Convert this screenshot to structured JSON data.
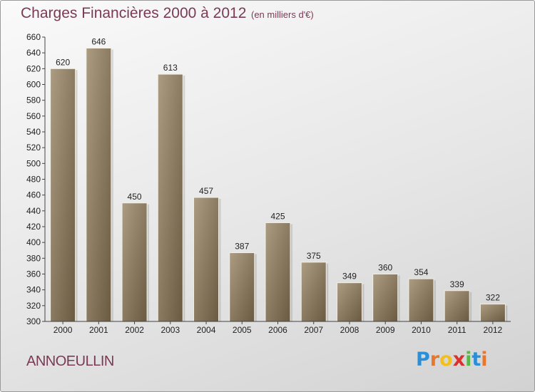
{
  "title": "Charges Financières 2000 à 2012",
  "subtitle": "(en milliers d'€)",
  "commune": "ANNOEULLIN",
  "logo": {
    "letters": [
      "P",
      "r",
      "o",
      "x",
      "i",
      "t",
      "i"
    ],
    "colors": [
      "#2a8fd6",
      "#e8762b",
      "#f2c01e",
      "#d8322e",
      "#58b947",
      "#2a8fd6",
      "#e8762b"
    ]
  },
  "colors": {
    "title": "#7a3a55",
    "bar_light": "#a4957b",
    "bar_dark": "#6e5e45"
  },
  "chart_data": {
    "type": "bar",
    "categories": [
      "2000",
      "2001",
      "2002",
      "2003",
      "2004",
      "2005",
      "2006",
      "2007",
      "2008",
      "2009",
      "2010",
      "2011",
      "2012"
    ],
    "values": [
      620,
      646,
      450,
      613,
      457,
      387,
      425,
      375,
      349,
      360,
      354,
      339,
      322
    ],
    "ylim": [
      300,
      660
    ],
    "yticks": [
      300,
      320,
      340,
      360,
      380,
      400,
      420,
      440,
      460,
      480,
      500,
      520,
      540,
      560,
      580,
      600,
      620,
      640,
      660
    ],
    "grid": false
  }
}
